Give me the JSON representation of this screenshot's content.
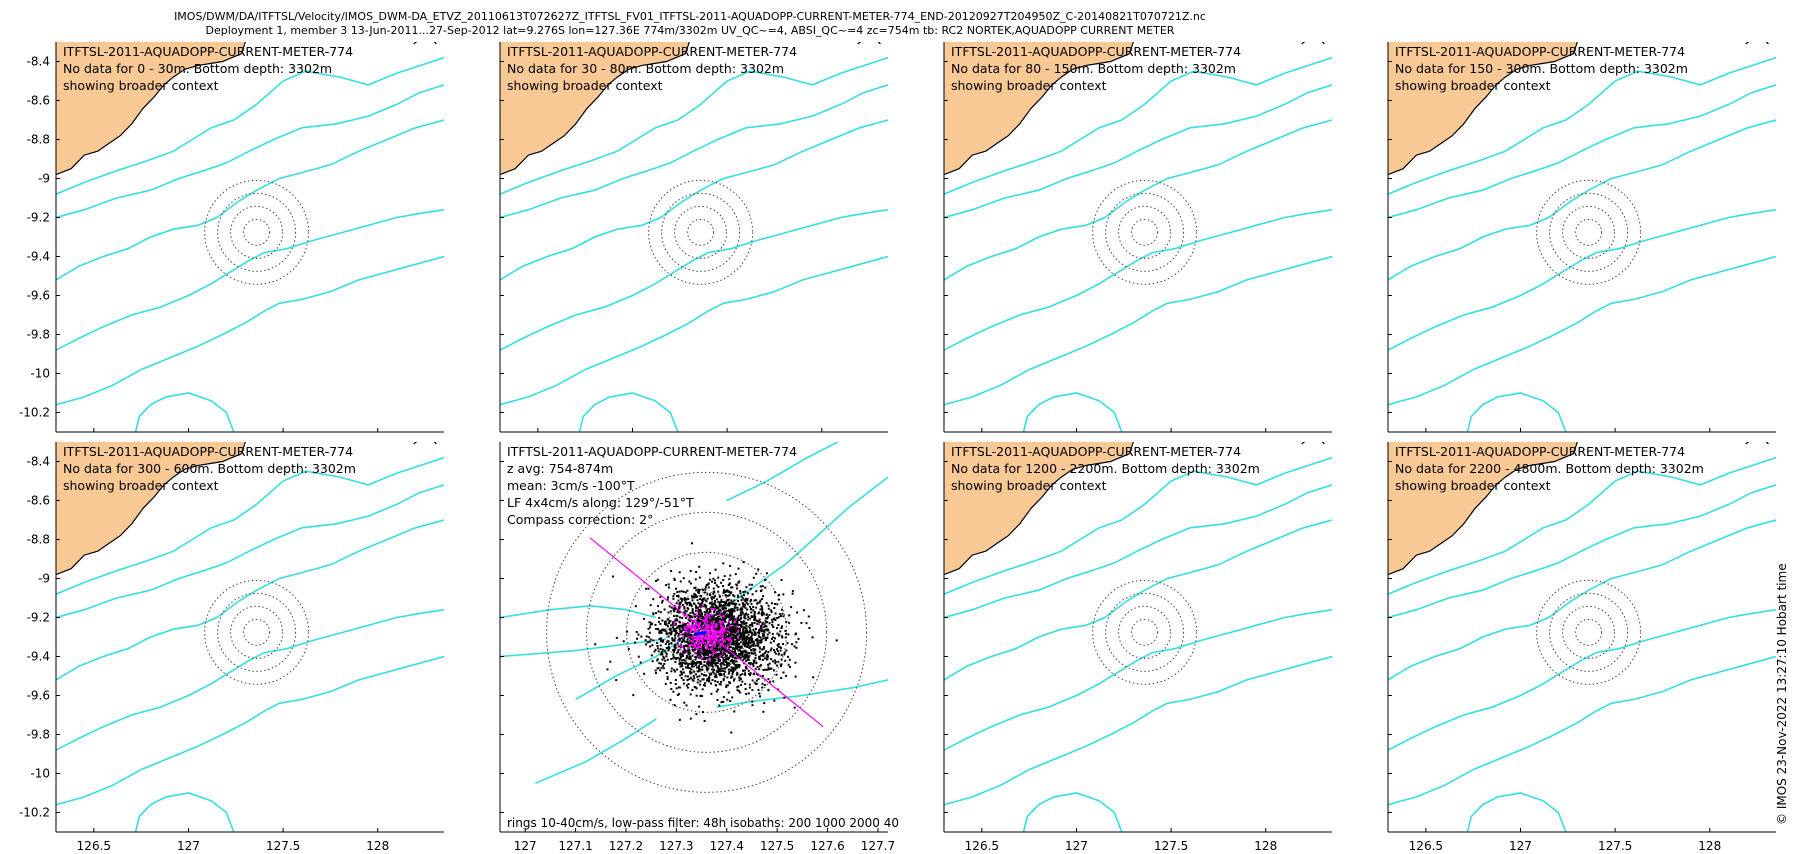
{
  "header": {
    "line1": "IMOS/DWM/DA/ITFTSL/Velocity/IMOS_DWM-DA_ETVZ_20110613T072627Z_ITFTSL_FV01_ITFTSL-2011-AQUADOPP-CURRENT-METER-774_END-20120927T204950Z_C-20140821T070721Z.nc",
    "line2": "Deployment 1, member 3 13-Jun-2011...27-Sep-2012 lat=9.276S lon=127.36E 774m/3302m UV_QC~=4, ABSI_QC~=4 zc=754m tb: RC2 NORTEK,AQUADOPP CURRENT METER"
  },
  "side_label": "© IMOS 23-Nov-2022 13:27:10 Hobart time",
  "colors": {
    "land": "#f9c995",
    "coast": "#000000",
    "isobath": "#33e0dc",
    "ring": "#444444",
    "scatter": "#000000",
    "lowpass": "#ff00ff",
    "mean": "#0000ff"
  },
  "map_axes": {
    "ylim": [
      -10.3,
      -8.3
    ],
    "yticks": [
      "-8.4",
      "-8.6",
      "-8.8",
      "-9",
      "-9.2",
      "-9.4",
      "-9.6",
      "-9.8",
      "-10",
      "-10.2"
    ],
    "xlim": [
      126.3,
      128.35
    ],
    "xticks": [
      "126.5",
      "127",
      "127.5",
      "128"
    ]
  },
  "panels": [
    {
      "title": "ITFTSL-2011-AQUADOPP-CURRENT-METER-774",
      "line2": "No data for 0 - 30m. Bottom depth: 3302m",
      "line3": "showing broader context"
    },
    {
      "title": "ITFTSL-2011-AQUADOPP-CURRENT-METER-774",
      "line2": "No data for 30 - 80m. Bottom depth: 3302m",
      "line3": "showing broader context"
    },
    {
      "title": "ITFTSL-2011-AQUADOPP-CURRENT-METER-774",
      "line2": "No data for 80 - 150m. Bottom depth: 3302m",
      "line3": "showing broader context"
    },
    {
      "title": "ITFTSL-2011-AQUADOPP-CURRENT-METER-774",
      "line2": "No data for 150 - 300m. Bottom depth: 3302m",
      "line3": "showing broader context"
    },
    {
      "title": "ITFTSL-2011-AQUADOPP-CURRENT-METER-774",
      "line2": "No data for 300 - 600m. Bottom depth: 3302m",
      "line3": "showing broader context"
    },
    {
      "title": "ITFTSL-2011-AQUADOPP-CURRENT-METER-774",
      "line2": "z avg: 754-874m",
      "line3": "mean: 3cm/s -100°T",
      "line4": "LF 4x4cm/s along: 129°/-51°T",
      "line5": "Compass correction: 2°",
      "footer": "rings 10-40cm/s, low-pass filter: 48h isobaths: 200 1000 2000 40",
      "xlim": [
        126.95,
        127.72
      ],
      "xticks": [
        "127",
        "127.1",
        "127.2",
        "127.3",
        "127.4",
        "127.5",
        "127.6",
        "127.7"
      ]
    },
    {
      "title": "ITFTSL-2011-AQUADOPP-CURRENT-METER-774",
      "line2": "No data for 1200 - 2200m. Bottom depth: 3302m",
      "line3": "showing broader context"
    },
    {
      "title": "ITFTSL-2011-AQUADOPP-CURRENT-METER-774",
      "line2": "No data for 2200 - 4800m. Bottom depth: 3302m",
      "line3": "showing broader context"
    }
  ],
  "chart_data": {
    "type": "scatter",
    "mooring": {
      "lat": -9.276,
      "lon": 127.36
    },
    "rings_cm_s": [
      10,
      20,
      30,
      40
    ],
    "mean_velocity": {
      "speed_cm_s": 3,
      "direction_degT": -100
    },
    "lowpass_axis_degT": [
      129,
      -51
    ],
    "isobaths_m": [
      200,
      1000,
      2000
    ],
    "ylim": [
      -10.3,
      -8.3
    ]
  }
}
